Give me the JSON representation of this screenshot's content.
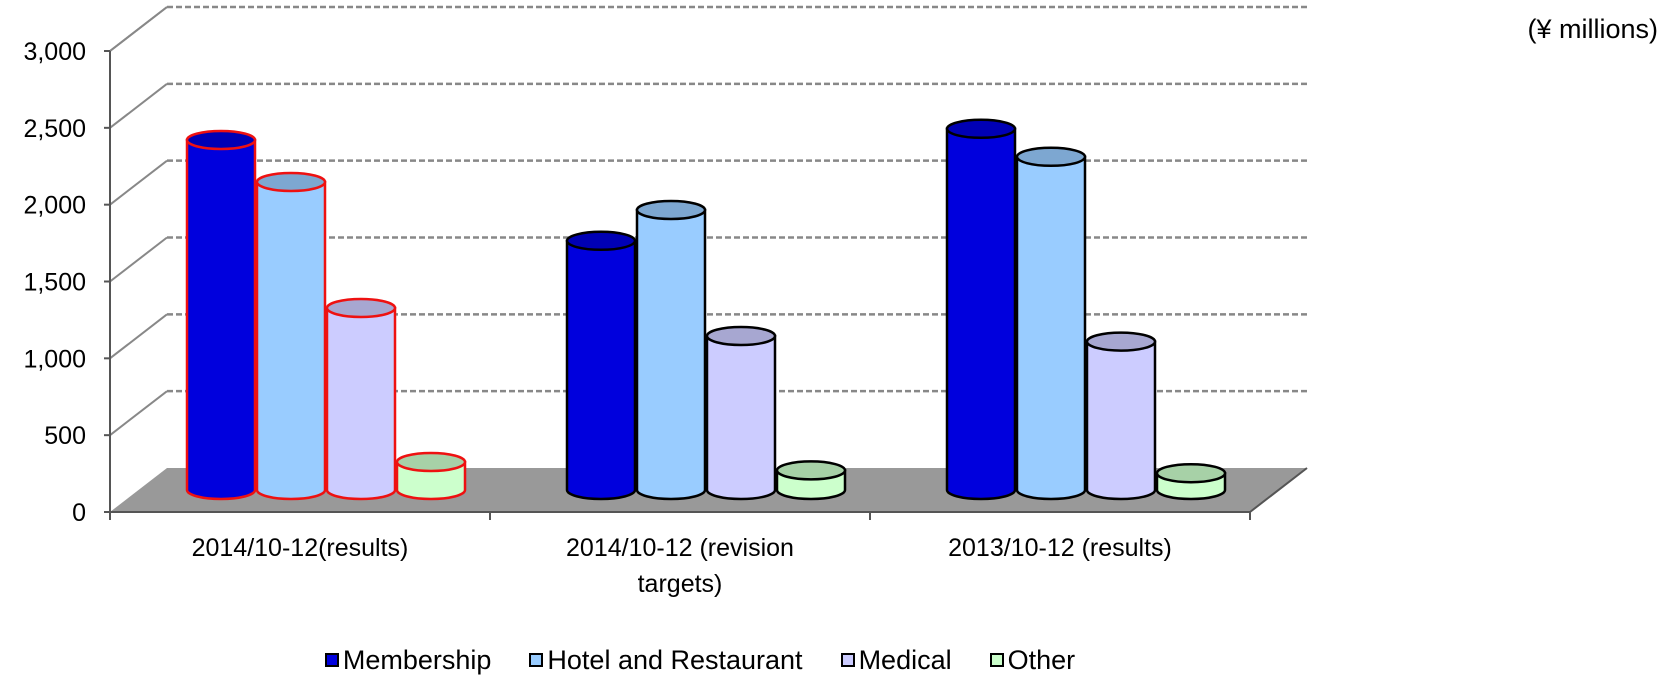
{
  "unit": "(¥ millions)",
  "chart_data": {
    "type": "bar",
    "categories": [
      "2014/10-12(results)",
      "2014/10-12 (revision targets)",
      "2013/10-12 (results)"
    ],
    "category_lines": [
      [
        "2014/10-12(results)"
      ],
      [
        "2014/10-12 (revision",
        "targets)"
      ],
      [
        "2013/10-12 (results)"
      ]
    ],
    "series": [
      {
        "name": "Membership",
        "values": [
          2500,
          1780,
          2580
        ],
        "color": "#0000dd"
      },
      {
        "name": "Hotel and Restaurant",
        "values": [
          2200,
          2000,
          2380
        ],
        "color": "#99ccff"
      },
      {
        "name": "Medical",
        "values": [
          1300,
          1100,
          1060
        ],
        "color": "#ccccff"
      },
      {
        "name": "Other",
        "values": [
          200,
          140,
          120
        ],
        "color": "#ccffcc"
      }
    ],
    "highlighted_category": 0,
    "highlight_color": "#ee1111",
    "y_ticks": [
      0,
      500,
      1000,
      1500,
      2000,
      2500,
      3000
    ],
    "y_tick_labels": [
      "0",
      "500",
      "1,000",
      "1,500",
      "2,000",
      "2,500",
      "3,000"
    ],
    "ylim": [
      0,
      3000
    ],
    "grid": "dashed",
    "legend_position": "bottom",
    "floor_color": "#999999",
    "wall_line_color": "#888888"
  }
}
